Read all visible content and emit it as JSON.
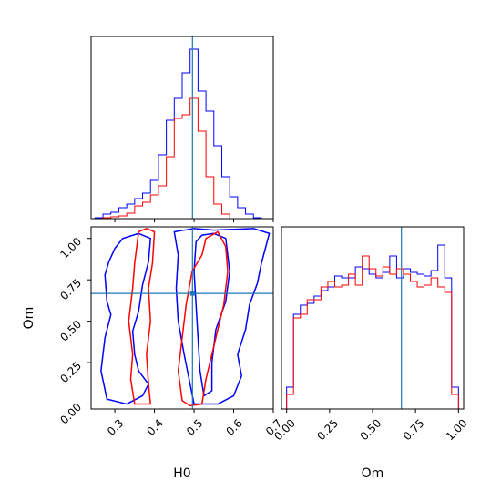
{
  "colors": {
    "series_a": "#0000ff",
    "series_b": "#ff0000",
    "truth": "#1f77b4",
    "axes": "#000000"
  },
  "chart_data": [
    {
      "id": "h0-hist",
      "type": "histogram",
      "x_var": "H0",
      "xlim": [
        0.24,
        0.7
      ],
      "ylim": [
        0,
        1.0
      ],
      "bins": [
        0.25,
        0.27,
        0.29,
        0.31,
        0.33,
        0.35,
        0.37,
        0.39,
        0.41,
        0.43,
        0.45,
        0.47,
        0.49,
        0.51,
        0.53,
        0.55,
        0.57,
        0.59,
        0.61,
        0.63,
        0.65,
        0.67
      ],
      "series": [
        {
          "color": "blue",
          "counts": [
            0.005,
            0.025,
            0.035,
            0.06,
            0.08,
            0.11,
            0.14,
            0.21,
            0.35,
            0.54,
            0.66,
            0.8,
            0.93,
            0.7,
            0.59,
            0.4,
            0.23,
            0.12,
            0.06,
            0.025,
            0.005
          ]
        },
        {
          "color": "red",
          "counts": [
            0.0,
            0.005,
            0.01,
            0.015,
            0.03,
            0.07,
            0.09,
            0.13,
            0.18,
            0.34,
            0.55,
            0.57,
            0.66,
            0.48,
            0.23,
            0.08,
            0.025,
            0.0,
            0.0,
            0.0,
            0.0
          ]
        }
      ],
      "truth_x": 0.496,
      "xticks": [
        0.3,
        0.4,
        0.5,
        0.6,
        0.7
      ]
    },
    {
      "id": "h0-om-contour",
      "type": "contour",
      "x_var": "H0",
      "y_var": "Om",
      "xlim": [
        0.24,
        0.7
      ],
      "ylim": [
        -0.03,
        1.07
      ],
      "xticks": [
        0.3,
        0.4,
        0.5,
        0.6,
        0.7
      ],
      "xtick_labels": [
        "0.3",
        "0.4",
        "0.5",
        "0.6",
        "0.7"
      ],
      "yticks": [
        0.0,
        0.25,
        0.5,
        0.75,
        1.0
      ],
      "ytick_labels": [
        "0.00",
        "0.25",
        "0.50",
        "0.75",
        "1.00"
      ],
      "xlabel": "H0",
      "ylabel": "Om",
      "truth": [
        0.496,
        0.668
      ],
      "series": [
        {
          "color": "blue",
          "contours": [
            [
              [
                0.285,
                0.86
              ],
              [
                0.275,
                0.78
              ],
              [
                0.28,
                0.62
              ],
              [
                0.29,
                0.54
              ],
              [
                0.275,
                0.4
              ],
              [
                0.265,
                0.2
              ],
              [
                0.28,
                0.03
              ],
              [
                0.33,
                0.0
              ],
              [
                0.37,
                0.05
              ],
              [
                0.385,
                0.12
              ],
              [
                0.36,
                0.2
              ],
              [
                0.35,
                0.3
              ],
              [
                0.345,
                0.44
              ],
              [
                0.36,
                0.56
              ],
              [
                0.37,
                0.72
              ],
              [
                0.385,
                0.86
              ],
              [
                0.39,
                1.0
              ],
              [
                0.36,
                1.03
              ],
              [
                0.32,
                1.0
              ],
              [
                0.3,
                0.94
              ]
            ],
            [
              [
                0.45,
                1.04
              ],
              [
                0.46,
                0.9
              ],
              [
                0.455,
                0.7
              ],
              [
                0.46,
                0.5
              ],
              [
                0.475,
                0.3
              ],
              [
                0.49,
                0.12
              ],
              [
                0.5,
                0.0
              ],
              [
                0.56,
                0.0
              ],
              [
                0.6,
                0.05
              ],
              [
                0.62,
                0.17
              ],
              [
                0.61,
                0.3
              ],
              [
                0.63,
                0.45
              ],
              [
                0.64,
                0.6
              ],
              [
                0.66,
                0.73
              ],
              [
                0.67,
                0.85
              ],
              [
                0.69,
                1.03
              ],
              [
                0.65,
                1.06
              ],
              [
                0.55,
                1.05
              ],
              [
                0.5,
                1.06
              ]
            ],
            [
              [
                0.505,
                0.98
              ],
              [
                0.5,
                0.8
              ],
              [
                0.505,
                0.6
              ],
              [
                0.51,
                0.4
              ],
              [
                0.515,
                0.2
              ],
              [
                0.525,
                0.05
              ],
              [
                0.545,
                0.08
              ],
              [
                0.545,
                0.25
              ],
              [
                0.555,
                0.45
              ],
              [
                0.58,
                0.62
              ],
              [
                0.59,
                0.8
              ],
              [
                0.58,
                1.0
              ],
              [
                0.55,
                1.03
              ],
              [
                0.52,
                1.02
              ]
            ]
          ]
        },
        {
          "color": "red",
          "contours": [
            [
              [
                0.36,
                1.04
              ],
              [
                0.35,
                0.85
              ],
              [
                0.345,
                0.7
              ],
              [
                0.335,
                0.5
              ],
              [
                0.345,
                0.3
              ],
              [
                0.34,
                0.15
              ],
              [
                0.35,
                0.0
              ],
              [
                0.39,
                0.0
              ],
              [
                0.385,
                0.12
              ],
              [
                0.38,
                0.3
              ],
              [
                0.39,
                0.5
              ],
              [
                0.385,
                0.7
              ],
              [
                0.395,
                0.85
              ],
              [
                0.4,
                1.04
              ],
              [
                0.38,
                1.06
              ]
            ],
            [
              [
                0.47,
                0.02
              ],
              [
                0.46,
                0.2
              ],
              [
                0.47,
                0.4
              ],
              [
                0.48,
                0.6
              ],
              [
                0.495,
                0.8
              ],
              [
                0.52,
                0.9
              ],
              [
                0.53,
                1.0
              ],
              [
                0.56,
                1.04
              ],
              [
                0.58,
                0.95
              ],
              [
                0.585,
                0.8
              ],
              [
                0.575,
                0.6
              ],
              [
                0.56,
                0.45
              ],
              [
                0.545,
                0.3
              ],
              [
                0.53,
                0.15
              ],
              [
                0.52,
                0.0
              ],
              [
                0.49,
                -0.01
              ]
            ]
          ]
        }
      ]
    },
    {
      "id": "om-hist",
      "type": "histogram",
      "x_var": "Om",
      "xlim": [
        -0.03,
        1.03
      ],
      "ylim": [
        0,
        1.0
      ],
      "bins": [
        0.0,
        0.04,
        0.08,
        0.12,
        0.16,
        0.2,
        0.24,
        0.28,
        0.32,
        0.36,
        0.4,
        0.44,
        0.48,
        0.52,
        0.56,
        0.6,
        0.64,
        0.68,
        0.72,
        0.76,
        0.8,
        0.84,
        0.88,
        0.92,
        0.96,
        1.0
      ],
      "series": [
        {
          "color": "blue",
          "counts": [
            0.12,
            0.52,
            0.57,
            0.58,
            0.62,
            0.65,
            0.67,
            0.73,
            0.72,
            0.72,
            0.78,
            0.77,
            0.74,
            0.72,
            0.75,
            0.84,
            0.72,
            0.77,
            0.75,
            0.74,
            0.73,
            0.76,
            0.9,
            0.72,
            0.12
          ]
        },
        {
          "color": "red",
          "counts": [
            0.08,
            0.5,
            0.52,
            0.6,
            0.6,
            0.67,
            0.7,
            0.67,
            0.68,
            0.74,
            0.68,
            0.84,
            0.77,
            0.73,
            0.78,
            0.74,
            0.77,
            0.74,
            0.7,
            0.67,
            0.68,
            0.72,
            0.67,
            0.64,
            0.08
          ]
        }
      ],
      "truth_x": 0.668,
      "xticks": [
        0.0,
        0.25,
        0.5,
        0.75,
        1.0
      ],
      "xtick_labels": [
        "0.00",
        "0.25",
        "0.50",
        "0.75",
        "1.00"
      ],
      "xlabel": "Om"
    }
  ]
}
